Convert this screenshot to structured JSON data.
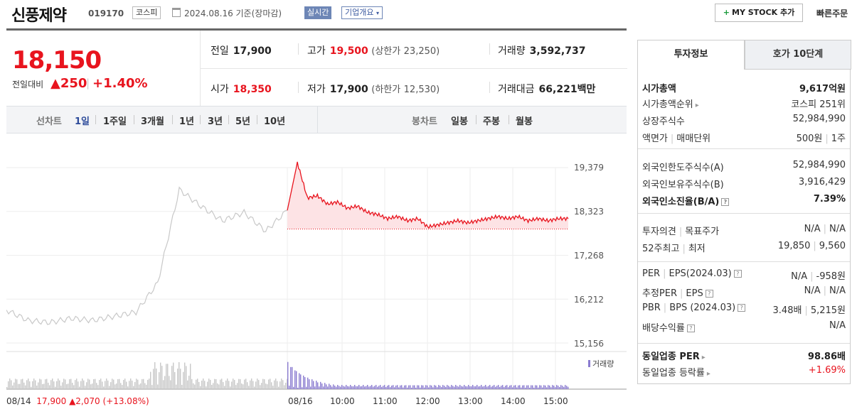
{
  "header": {
    "stock_name": "신풍제약",
    "stock_code": "019170",
    "market": "코스피",
    "date_text": "2024.08.16 기준(장마감)",
    "realtime_badge": "실시간",
    "company_badge": "기업개요",
    "mystock_label": "MY STOCK 추가",
    "quick_order_label": "빠른주문"
  },
  "quote": {
    "price": "18,150",
    "change_label": "전일대비",
    "change_value": "▲250",
    "change_pct": "+1.40%",
    "prev_close": {
      "label": "전일",
      "value": "17,900"
    },
    "high": {
      "label": "고가",
      "value": "19,500",
      "limit_label": "(상한가",
      "limit_value": "23,250)"
    },
    "volume": {
      "label": "거래량",
      "value": "3,592,737"
    },
    "open": {
      "label": "시가",
      "value": "18,350"
    },
    "low": {
      "label": "저가",
      "value": "17,900",
      "limit_label": "(하한가",
      "limit_value": "12,530)"
    },
    "amount": {
      "label": "거래대금",
      "value": "66,221",
      "unit": "백만"
    }
  },
  "period_bar": {
    "line_label": "선차트",
    "line_periods": [
      "1일",
      "1주일",
      "3개월",
      "1년",
      "3년",
      "5년",
      "10년"
    ],
    "active_period": "1일",
    "candle_label": "봉차트",
    "candle_periods": [
      "일봉",
      "주봉",
      "월봉"
    ]
  },
  "chart": {
    "y_ticks": [
      "19,379",
      "18,323",
      "17,268",
      "16,212",
      "15,156"
    ],
    "x_ticks": [
      "08/16",
      "10:00",
      "11:00",
      "12:00",
      "13:00",
      "14:00",
      "15:00"
    ],
    "volume_legend": "거래량",
    "prev_day_info": {
      "date": "08/14",
      "price": "17,900",
      "change": "▲2,070",
      "pct": "(+13.08%)"
    },
    "colors": {
      "today_line": "#e8141e",
      "today_fill": "#fde3e5",
      "prev_line": "#c8c8c8",
      "today_volume": "#8a7bd0",
      "prev_volume": "#c8c8c8"
    }
  },
  "chart_data": {
    "type": "line",
    "ylim": [
      15156,
      19379
    ],
    "y_tick_values": [
      19379,
      18323,
      17268,
      16212,
      15156
    ],
    "prev_close": 17900,
    "series": [
      {
        "x": [
          "09:00",
          "09:05",
          "09:10",
          "09:20",
          "09:30",
          "09:45",
          "10:00",
          "10:15",
          "10:30",
          "10:45",
          "11:00",
          "11:15",
          "11:30",
          "11:45",
          "12:00",
          "12:15",
          "12:30",
          "12:45",
          "13:00",
          "13:15",
          "13:30",
          "13:45",
          "14:00",
          "14:15",
          "14:30",
          "14:45",
          "15:00",
          "15:15",
          "15:30"
        ],
        "values": [
          18350,
          19500,
          18650,
          18700,
          18500,
          18550,
          18400,
          18450,
          18300,
          18250,
          18150,
          18200,
          18100,
          18150,
          17950,
          18000,
          18050,
          18100,
          18050,
          18100,
          18150,
          18200,
          18150,
          18200,
          18100,
          18150,
          18100,
          18150,
          18150
        ]
      },
      {
        "x": [
          "08/14 09:00",
          "08/14 10:00",
          "08/14 11:00",
          "08/14 12:00",
          "08/14 13:00",
          "08/14 14:00",
          "08/14 15:00",
          "08/15 09:00",
          "08/15 10:00",
          "08/15 11:00",
          "08/15 12:00",
          "08/15 13:00",
          "08/15 14:00",
          "08/15 15:00"
        ],
        "values": [
          15950,
          15700,
          15650,
          15750,
          15700,
          15800,
          15900,
          16600,
          18850,
          18450,
          18100,
          18300,
          17850,
          18350
        ]
      }
    ]
  },
  "info_panel": {
    "tabs": [
      "투자정보",
      "호가 10단계"
    ],
    "market_cap": {
      "label": "시가총액",
      "value": "9,617억원"
    },
    "market_cap_rank": {
      "label": "시가총액순위",
      "value": "코스피 251위"
    },
    "listed_shares": {
      "label": "상장주식수",
      "value": "52,984,990"
    },
    "par_value": {
      "label1": "액면가",
      "label2": "매매단위",
      "value1": "500원",
      "value2": "1주"
    },
    "foreign_limit": {
      "label": "외국인한도주식수(A)",
      "value": "52,984,990"
    },
    "foreign_holding": {
      "label": "외국인보유주식수(B)",
      "value": "3,916,429"
    },
    "foreign_ratio": {
      "label": "외국인소진율(B/A)",
      "value": "7.39%"
    },
    "opinion": {
      "label1": "투자의견",
      "label2": "목표주가",
      "value1": "N/A",
      "value2": "N/A"
    },
    "week52": {
      "label1": "52주최고",
      "label2": "최저",
      "value1": "19,850",
      "value2": "9,560"
    },
    "per_eps": {
      "label1": "PER",
      "label2": "EPS(2024.03)",
      "value1": "N/A",
      "value2": "-958원"
    },
    "est_per_eps": {
      "label1": "추정PER",
      "label2": "EPS",
      "value1": "N/A",
      "value2": "N/A"
    },
    "pbr_bps": {
      "label1": "PBR",
      "label2": "BPS (2024.03)",
      "value1": "3.48배",
      "value2": "5,215원"
    },
    "dividend_yield": {
      "label": "배당수익률",
      "value": "N/A"
    },
    "sector_per": {
      "label": "동일업종 PER",
      "value": "98.86배"
    },
    "sector_change": {
      "label": "동일업종 등락률",
      "value": "+1.69%"
    }
  }
}
